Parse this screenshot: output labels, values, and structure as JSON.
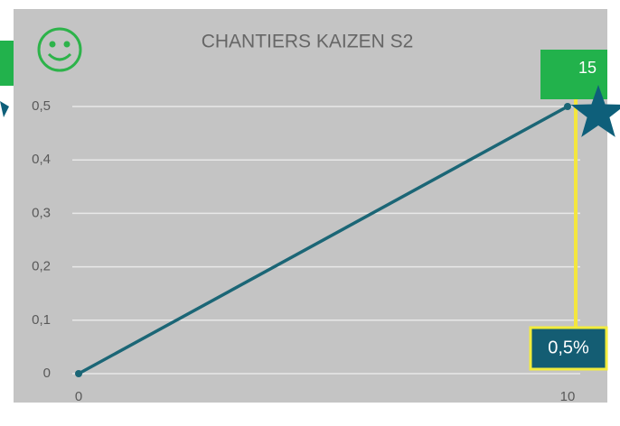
{
  "chart_data": {
    "type": "line",
    "title": "CHANTIERS KAIZEN S2",
    "x": [
      0,
      10
    ],
    "xlim": [
      0,
      10
    ],
    "xticks": [
      0,
      10
    ],
    "series": [
      {
        "color": "#1b6676",
        "values": [
          0,
          0.5
        ]
      }
    ],
    "ylim": [
      0,
      0.5
    ],
    "yticks": [
      0,
      {
        "value": 0.1,
        "label": "0,1"
      },
      {
        "value": 0.2,
        "label": "0,2"
      },
      {
        "value": 0.3,
        "label": "0,3"
      },
      {
        "value": 0.4,
        "label": "0,4"
      },
      {
        "value": 0.5,
        "label": "0,5"
      }
    ],
    "grid": true,
    "annotations": [
      {
        "text": "15"
      },
      {
        "text": "0,5%"
      }
    ]
  }
}
